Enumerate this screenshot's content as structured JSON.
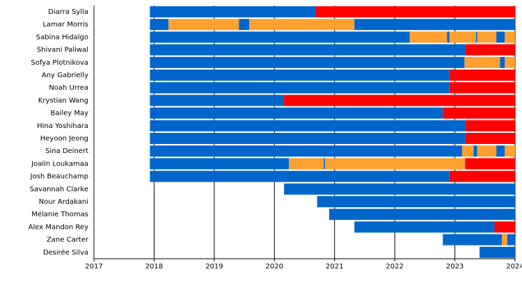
{
  "chart_data": {
    "type": "timeline",
    "xlim": [
      2017,
      2024
    ],
    "xticks": [
      2017,
      2018,
      2019,
      2020,
      2021,
      2022,
      2023,
      2024
    ],
    "grid": true,
    "rows": [
      {
        "name": "Diarra Sylla",
        "segments": [
          {
            "start": 2017.93,
            "end": 2020.68,
            "color": "#0066cc"
          },
          {
            "start": 2020.68,
            "end": 2024,
            "color": "#ff0000"
          }
        ]
      },
      {
        "name": "Lamar Morris",
        "segments": [
          {
            "start": 2017.93,
            "end": 2018.24,
            "color": "#0066cc"
          },
          {
            "start": 2018.24,
            "end": 2019.41,
            "color": "#ffa030"
          },
          {
            "start": 2019.41,
            "end": 2019.58,
            "color": "#0066cc"
          },
          {
            "start": 2019.58,
            "end": 2021.33,
            "color": "#ffa030"
          },
          {
            "start": 2021.33,
            "end": 2024,
            "color": "#0066cc"
          }
        ]
      },
      {
        "name": "Sabina Hidalgo",
        "segments": [
          {
            "start": 2017.93,
            "end": 2022.25,
            "color": "#0066cc"
          },
          {
            "start": 2022.25,
            "end": 2022.87,
            "color": "#ffa030"
          },
          {
            "start": 2022.87,
            "end": 2022.91,
            "color": "#0066cc"
          },
          {
            "start": 2022.91,
            "end": 2023.35,
            "color": "#ffa030"
          },
          {
            "start": 2023.35,
            "end": 2023.37,
            "color": "#0066cc"
          },
          {
            "start": 2023.37,
            "end": 2023.69,
            "color": "#ffa030"
          },
          {
            "start": 2023.69,
            "end": 2023.83,
            "color": "#0066cc"
          },
          {
            "start": 2023.83,
            "end": 2024,
            "color": "#ffa030"
          }
        ]
      },
      {
        "name": "Shivani Paliwal",
        "segments": [
          {
            "start": 2017.93,
            "end": 2023.17,
            "color": "#0066cc"
          },
          {
            "start": 2023.17,
            "end": 2024,
            "color": "#ff0000"
          }
        ]
      },
      {
        "name": "Sofya Plotnikova",
        "segments": [
          {
            "start": 2017.93,
            "end": 2023.16,
            "color": "#0066cc"
          },
          {
            "start": 2023.16,
            "end": 2023.75,
            "color": "#ffa030"
          },
          {
            "start": 2023.75,
            "end": 2023.83,
            "color": "#0066cc"
          },
          {
            "start": 2023.83,
            "end": 2024,
            "color": "#ffa030"
          }
        ]
      },
      {
        "name": "Any Gabrielly",
        "segments": [
          {
            "start": 2017.93,
            "end": 2022.91,
            "color": "#0066cc"
          },
          {
            "start": 2022.91,
            "end": 2024,
            "color": "#ff0000"
          }
        ]
      },
      {
        "name": "Noah Urrea",
        "segments": [
          {
            "start": 2017.93,
            "end": 2022.91,
            "color": "#0066cc"
          },
          {
            "start": 2022.91,
            "end": 2024,
            "color": "#ff0000"
          }
        ]
      },
      {
        "name": "Krystian Wang",
        "segments": [
          {
            "start": 2017.93,
            "end": 2020.16,
            "color": "#0066cc"
          },
          {
            "start": 2020.16,
            "end": 2024,
            "color": "#ff0000"
          }
        ]
      },
      {
        "name": "Bailey May",
        "segments": [
          {
            "start": 2017.93,
            "end": 2022.8,
            "color": "#0066cc"
          },
          {
            "start": 2022.8,
            "end": 2024,
            "color": "#ff0000"
          }
        ]
      },
      {
        "name": "Hina Yoshihara",
        "segments": [
          {
            "start": 2017.93,
            "end": 2023.17,
            "color": "#0066cc"
          },
          {
            "start": 2023.17,
            "end": 2024,
            "color": "#ff0000"
          }
        ]
      },
      {
        "name": "Heyoon Jeong",
        "segments": [
          {
            "start": 2017.93,
            "end": 2023.17,
            "color": "#0066cc"
          },
          {
            "start": 2023.17,
            "end": 2024,
            "color": "#ff0000"
          }
        ]
      },
      {
        "name": "Sina Deinert",
        "segments": [
          {
            "start": 2017.93,
            "end": 2023.12,
            "color": "#0066cc"
          },
          {
            "start": 2023.12,
            "end": 2023.31,
            "color": "#ffa030"
          },
          {
            "start": 2023.31,
            "end": 2023.37,
            "color": "#0066cc"
          },
          {
            "start": 2023.37,
            "end": 2023.69,
            "color": "#ffa030"
          },
          {
            "start": 2023.69,
            "end": 2023.83,
            "color": "#0066cc"
          },
          {
            "start": 2023.83,
            "end": 2024,
            "color": "#ffa030"
          }
        ]
      },
      {
        "name": "Joalin Loukamaa",
        "segments": [
          {
            "start": 2017.93,
            "end": 2020.24,
            "color": "#0066cc"
          },
          {
            "start": 2020.24,
            "end": 2020.82,
            "color": "#ffa030"
          },
          {
            "start": 2020.82,
            "end": 2020.84,
            "color": "#0066cc"
          },
          {
            "start": 2020.84,
            "end": 2023.17,
            "color": "#ffa030"
          },
          {
            "start": 2023.17,
            "end": 2024,
            "color": "#ff0000"
          }
        ]
      },
      {
        "name": "Josh Beauchamp",
        "segments": [
          {
            "start": 2017.93,
            "end": 2022.91,
            "color": "#0066cc"
          },
          {
            "start": 2022.91,
            "end": 2024,
            "color": "#ff0000"
          }
        ]
      },
      {
        "name": "Savannah Clarke",
        "segments": [
          {
            "start": 2020.16,
            "end": 2024,
            "color": "#0066cc"
          }
        ]
      },
      {
        "name": "Nour Ardakani",
        "segments": [
          {
            "start": 2020.71,
            "end": 2024,
            "color": "#0066cc"
          }
        ]
      },
      {
        "name": "Mélanie Thomas",
        "segments": [
          {
            "start": 2020.91,
            "end": 2024,
            "color": "#0066cc"
          }
        ]
      },
      {
        "name": "Alex Mandon Rey",
        "segments": [
          {
            "start": 2021.33,
            "end": 2023.66,
            "color": "#0066cc"
          },
          {
            "start": 2023.66,
            "end": 2024,
            "color": "#ff0000"
          }
        ]
      },
      {
        "name": "Zane Carter",
        "segments": [
          {
            "start": 2022.8,
            "end": 2023.78,
            "color": "#0066cc"
          },
          {
            "start": 2023.78,
            "end": 2023.87,
            "color": "#ffa030"
          },
          {
            "start": 2023.87,
            "end": 2024,
            "color": "#0066cc"
          }
        ]
      },
      {
        "name": "Desirée Silva",
        "segments": [
          {
            "start": 2023.41,
            "end": 2024,
            "color": "#0066cc"
          }
        ]
      }
    ]
  }
}
